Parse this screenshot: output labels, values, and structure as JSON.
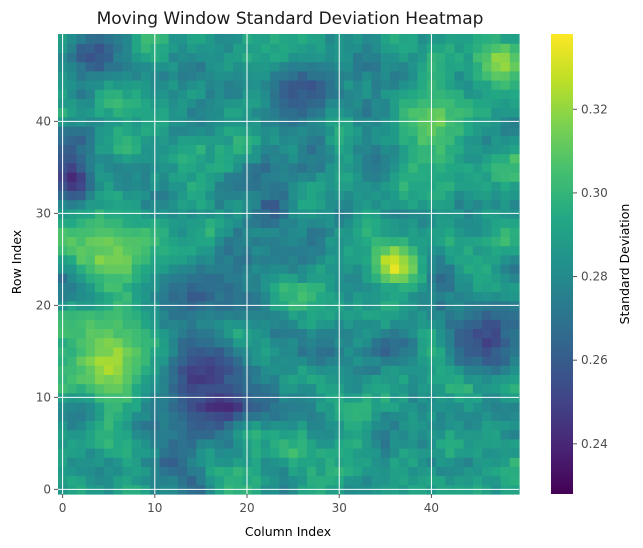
{
  "chart_data": {
    "type": "heatmap",
    "title": "Moving Window Standard Deviation Heatmap",
    "xlabel": "Column Index",
    "ylabel": "Row Index",
    "colorbar_label": "Standard Deviation",
    "rows": 50,
    "cols": 50,
    "x_range": [
      0,
      49
    ],
    "y_range": [
      0,
      49
    ],
    "origin": "lower",
    "x_ticks": [
      0,
      10,
      20,
      30,
      40
    ],
    "y_ticks": [
      0,
      10,
      20,
      30,
      40
    ],
    "value_range": [
      0.228,
      0.338
    ],
    "colorbar_ticks": [
      0.24,
      0.26,
      0.28,
      0.3,
      0.32
    ],
    "colormap": "viridis",
    "grid": true,
    "approximate_regions": [
      {
        "rows": [
          10,
          18
        ],
        "cols": [
          0,
          10
        ],
        "value": 0.322
      },
      {
        "rows": [
          22,
          29
        ],
        "cols": [
          0,
          10
        ],
        "value": 0.316
      },
      {
        "rows": [
          23,
          26
        ],
        "cols": [
          34,
          38
        ],
        "value": 0.332
      },
      {
        "rows": [
          36,
          44
        ],
        "cols": [
          37,
          43
        ],
        "value": 0.312
      },
      {
        "rows": [
          45,
          48
        ],
        "cols": [
          46,
          49
        ],
        "value": 0.318
      },
      {
        "rows": [
          10,
          15
        ],
        "cols": [
          11,
          19
        ],
        "value": 0.246
      },
      {
        "rows": [
          8,
          10
        ],
        "cols": [
          13,
          22
        ],
        "value": 0.244
      },
      {
        "rows": [
          19,
          24
        ],
        "cols": [
          10,
          19
        ],
        "value": 0.262
      },
      {
        "rows": [
          13,
          20
        ],
        "cols": [
          43,
          49
        ],
        "value": 0.252
      },
      {
        "rows": [
          32,
          36
        ],
        "cols": [
          0,
          2
        ],
        "value": 0.245
      },
      {
        "rows": [
          45,
          49
        ],
        "cols": [
          1,
          6
        ],
        "value": 0.255
      },
      {
        "rows": [
          41,
          46
        ],
        "cols": [
          22,
          30
        ],
        "value": 0.258
      }
    ]
  }
}
